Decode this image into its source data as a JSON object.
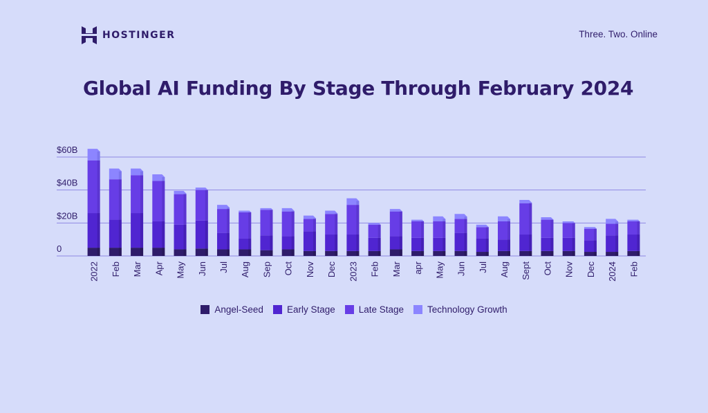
{
  "header": {
    "brand": "HOSTINGER",
    "tagline": "Three. Two. Online",
    "title": "Global AI Funding By Stage Through February 2024"
  },
  "colors": {
    "background": "#d6dcfa",
    "text": "#2f1c6a",
    "grid": "#8f88e4",
    "angel_seed": "#2f1c6a",
    "early_stage": "#5025d1",
    "late_stage": "#673de6",
    "technology_growth": "#8c85ff"
  },
  "chart_data": {
    "type": "bar",
    "stacked": true,
    "title": "Global AI Funding By Stage Through February 2024",
    "ylim": [
      0,
      60
    ],
    "yticks": [
      0,
      20,
      40,
      60
    ],
    "ytick_labels": [
      "0",
      "$20B",
      "$40B",
      "$60B"
    ],
    "categories": [
      "2022",
      "Feb",
      "Mar",
      "Apr",
      "May",
      "Jun",
      "Jul",
      "Aug",
      "Sep",
      "Oct",
      "Nov",
      "Dec",
      "2023",
      "Feb",
      "Mar",
      "apr",
      "May",
      "Jun",
      "Jul",
      "Aug",
      "Sept",
      "Oct",
      "Nov",
      "Dec",
      "2024",
      "Feb"
    ],
    "series": [
      {
        "name": "Angel-Seed",
        "values": [
          5,
          5,
          5,
          5,
          4,
          4.5,
          4,
          4,
          3.5,
          4,
          3,
          3,
          3,
          3,
          4,
          3,
          3,
          3,
          2.5,
          3,
          3,
          3,
          3,
          2.5,
          2.5,
          3
        ]
      },
      {
        "name": "Early Stage",
        "values": [
          21,
          17,
          21,
          16,
          15,
          17,
          10,
          6.5,
          9,
          8,
          12,
          10,
          10,
          8,
          8,
          8,
          8,
          11,
          8,
          7,
          10,
          8,
          8,
          7,
          10,
          10
        ]
      },
      {
        "name": "Late Stage",
        "values": [
          32,
          24.5,
          23,
          24.5,
          18.5,
          18.5,
          14.5,
          16,
          15.5,
          15,
          7.5,
          12.5,
          18,
          8,
          15,
          10,
          10,
          8.5,
          7,
          11,
          19,
          11,
          9,
          7,
          7,
          8
        ]
      },
      {
        "name": "Technology Growth",
        "values": [
          7,
          6.5,
          4,
          4,
          2,
          1.5,
          2.5,
          1,
          1,
          2,
          2,
          2,
          4,
          1,
          1.5,
          1,
          3,
          3,
          1.5,
          3,
          2,
          1.5,
          1,
          1,
          3,
          1
        ]
      }
    ],
    "legend_position": "bottom-center",
    "grid": true
  }
}
